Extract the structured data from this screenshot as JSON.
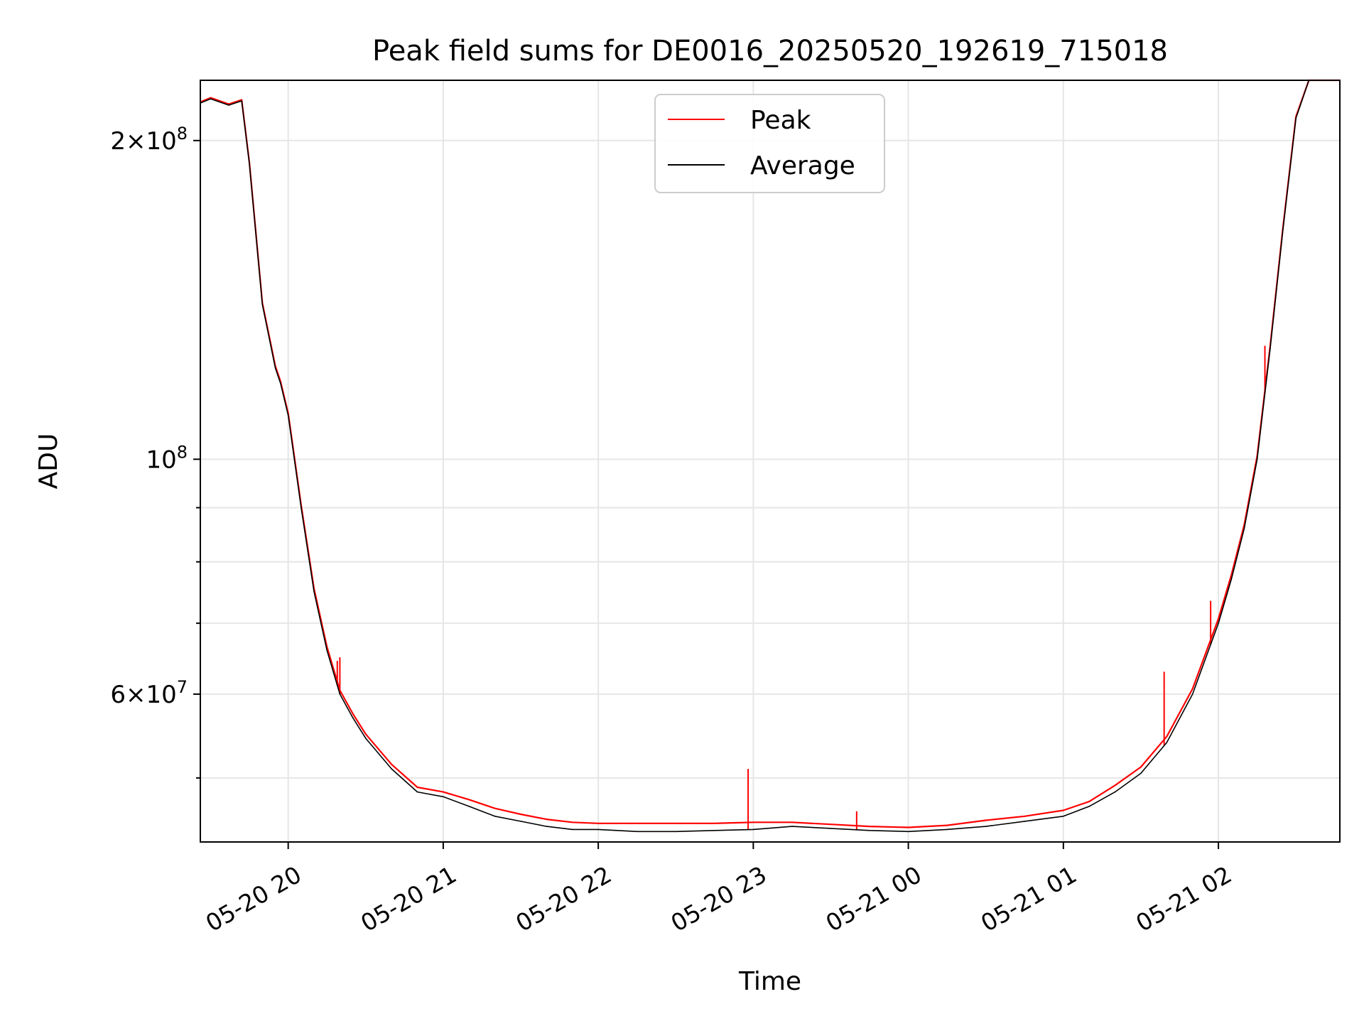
{
  "chart_data": {
    "type": "line",
    "title": "Peak field sums for DE0016_20250520_192619_715018",
    "xlabel": "Time",
    "ylabel": "ADU",
    "yscale": "log",
    "ylim": [
      43500000,
      228000000
    ],
    "xlim": [
      "2025-05-20 19:26",
      "2025-05-21 02:47"
    ],
    "grid": true,
    "legend": {
      "position": "upper center",
      "entries": [
        "Peak",
        "Average"
      ]
    },
    "x_ticks": [
      {
        "t": "2025-05-20 20:00",
        "label": "05-20 20"
      },
      {
        "t": "2025-05-20 21:00",
        "label": "05-20 21"
      },
      {
        "t": "2025-05-20 22:00",
        "label": "05-20 22"
      },
      {
        "t": "2025-05-20 23:00",
        "label": "05-20 23"
      },
      {
        "t": "2025-05-21 00:00",
        "label": "05-21 00"
      },
      {
        "t": "2025-05-21 01:00",
        "label": "05-21 01"
      },
      {
        "t": "2025-05-21 02:00",
        "label": "05-21 02"
      }
    ],
    "y_major_ticks": [
      {
        "value": 60000000,
        "label_base": "6×10",
        "label_exp": "7"
      },
      {
        "value": 100000000,
        "label_base": "10",
        "label_exp": "8"
      },
      {
        "value": 200000000,
        "label_base": "2×10",
        "label_exp": "8"
      }
    ],
    "y_minor_ticks": [
      50000000,
      70000000,
      80000000,
      90000000
    ],
    "series": [
      {
        "name": "Average",
        "color": "#000000",
        "x": [
          "2025-05-20 19:26",
          "2025-05-20 19:30",
          "2025-05-20 19:37",
          "2025-05-20 19:42",
          "2025-05-20 19:45",
          "2025-05-20 19:50",
          "2025-05-20 19:55",
          "2025-05-20 19:57",
          "2025-05-20 20:00",
          "2025-05-20 20:05",
          "2025-05-20 20:10",
          "2025-05-20 20:15",
          "2025-05-20 20:20",
          "2025-05-20 20:25",
          "2025-05-20 20:30",
          "2025-05-20 20:40",
          "2025-05-20 20:50",
          "2025-05-20 21:00",
          "2025-05-20 21:10",
          "2025-05-20 21:20",
          "2025-05-20 21:30",
          "2025-05-20 21:40",
          "2025-05-20 21:50",
          "2025-05-20 22:00",
          "2025-05-20 22:15",
          "2025-05-20 22:30",
          "2025-05-20 22:45",
          "2025-05-20 23:00",
          "2025-05-20 23:15",
          "2025-05-20 23:30",
          "2025-05-20 23:45",
          "2025-05-21 00:00",
          "2025-05-21 00:15",
          "2025-05-21 00:30",
          "2025-05-21 00:45",
          "2025-05-21 01:00",
          "2025-05-21 01:10",
          "2025-05-21 01:20",
          "2025-05-21 01:30",
          "2025-05-21 01:40",
          "2025-05-21 01:50",
          "2025-05-21 02:00",
          "2025-05-21 02:05",
          "2025-05-21 02:10",
          "2025-05-21 02:15",
          "2025-05-21 02:20",
          "2025-05-21 02:25",
          "2025-05-21 02:30",
          "2025-05-21 02:35",
          "2025-05-21 02:40",
          "2025-05-21 02:47"
        ],
        "y": [
          217000000,
          219000000,
          216000000,
          218000000,
          190000000,
          140000000,
          122000000,
          118000000,
          110000000,
          90000000,
          75000000,
          66000000,
          60000000,
          57000000,
          54500000,
          51000000,
          48500000,
          48000000,
          47000000,
          46000000,
          45500000,
          45000000,
          44700000,
          44700000,
          44500000,
          44500000,
          44600000,
          44700000,
          45000000,
          44800000,
          44600000,
          44500000,
          44700000,
          45000000,
          45500000,
          46000000,
          47000000,
          48500000,
          50500000,
          54000000,
          60000000,
          70000000,
          77000000,
          86000000,
          100000000,
          127000000,
          165000000,
          210000000,
          228000000,
          228000000,
          228000000
        ]
      },
      {
        "name": "Peak",
        "color": "#ff0000",
        "x": [
          "2025-05-20 19:26",
          "2025-05-20 19:30",
          "2025-05-20 19:37",
          "2025-05-20 19:42",
          "2025-05-20 19:45",
          "2025-05-20 19:50",
          "2025-05-20 19:55",
          "2025-05-20 19:57",
          "2025-05-20 20:00",
          "2025-05-20 20:05",
          "2025-05-20 20:10",
          "2025-05-20 20:15",
          "2025-05-20 20:20",
          "2025-05-20 20:25",
          "2025-05-20 20:30",
          "2025-05-20 20:40",
          "2025-05-20 20:50",
          "2025-05-20 21:00",
          "2025-05-20 21:10",
          "2025-05-20 21:20",
          "2025-05-20 21:30",
          "2025-05-20 21:40",
          "2025-05-20 21:50",
          "2025-05-20 22:00",
          "2025-05-20 22:15",
          "2025-05-20 22:30",
          "2025-05-20 22:45",
          "2025-05-20 23:00",
          "2025-05-20 23:15",
          "2025-05-20 23:30",
          "2025-05-20 23:45",
          "2025-05-21 00:00",
          "2025-05-21 00:15",
          "2025-05-21 00:30",
          "2025-05-21 00:45",
          "2025-05-21 01:00",
          "2025-05-21 01:10",
          "2025-05-21 01:20",
          "2025-05-21 01:30",
          "2025-05-21 01:40",
          "2025-05-21 01:50",
          "2025-05-21 02:00",
          "2025-05-21 02:05",
          "2025-05-21 02:10",
          "2025-05-21 02:15",
          "2025-05-21 02:20",
          "2025-05-21 02:25",
          "2025-05-21 02:30",
          "2025-05-21 02:35",
          "2025-05-21 02:40",
          "2025-05-21 02:47"
        ],
        "y": [
          217500000,
          219500000,
          216500000,
          218500000,
          190500000,
          140500000,
          122500000,
          118500000,
          110500000,
          90500000,
          75500000,
          66500000,
          60500000,
          57500000,
          55000000,
          51500000,
          49000000,
          48500000,
          47700000,
          46800000,
          46200000,
          45700000,
          45400000,
          45300000,
          45300000,
          45300000,
          45300000,
          45400000,
          45400000,
          45200000,
          45000000,
          44900000,
          45100000,
          45600000,
          46000000,
          46600000,
          47500000,
          49200000,
          51200000,
          54700000,
          60700000,
          70700000,
          77700000,
          86700000,
          100700000,
          127700000,
          165700000,
          210700000,
          228000000,
          228000000,
          228000000
        ]
      }
    ],
    "peak_spikes": [
      {
        "t": "2025-05-20 20:19",
        "value": 64500000
      },
      {
        "t": "2025-05-20 20:20",
        "value": 65000000
      },
      {
        "t": "2025-05-20 22:58",
        "value": 51000000
      },
      {
        "t": "2025-05-20 23:40",
        "value": 46500000
      },
      {
        "t": "2025-05-21 01:39",
        "value": 63000000
      },
      {
        "t": "2025-05-21 01:57",
        "value": 73500000
      },
      {
        "t": "2025-05-21 02:18",
        "value": 128000000
      }
    ]
  }
}
